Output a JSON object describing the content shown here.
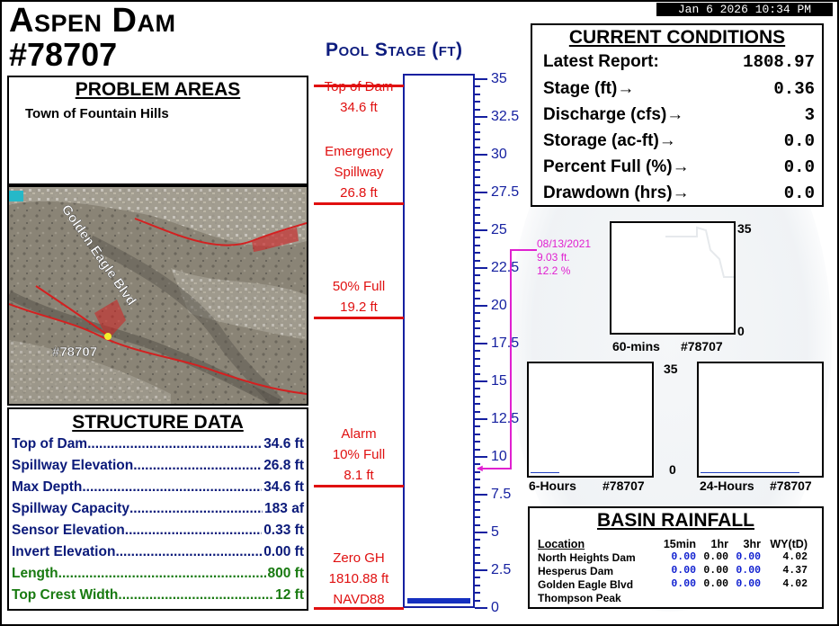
{
  "datetime": "Jan  6 2026 10:34 PM",
  "dam": {
    "name": "Aspen Dam",
    "id": "#78707"
  },
  "problem_areas": {
    "header": "PROBLEM AREAS",
    "text": "Town of Fountain Hills"
  },
  "map": {
    "road_label": "Golden Eagle Blvd",
    "marker_label": "#78707"
  },
  "structure": {
    "header": "STRUCTURE DATA",
    "rows": [
      {
        "label": "Top of Dam",
        "value": "34.6 ft",
        "color": "#0b1a7a"
      },
      {
        "label": "Spillway Elevation",
        "value": "26.8 ft",
        "color": "#0b1a7a"
      },
      {
        "label": "Max Depth",
        "value": "34.6 ft",
        "color": "#0b1a7a"
      },
      {
        "label": "Spillway Capacity",
        "value": "183 af",
        "color": "#0b1a7a"
      },
      {
        "label": "Sensor Elevation",
        "value": "0.33 ft",
        "color": "#0b1a7a"
      },
      {
        "label": "Invert Elevation",
        "value": "0.00 ft",
        "color": "#0b1a7a"
      },
      {
        "label": "Length",
        "value": "800 ft",
        "color": "#187a10"
      },
      {
        "label": "Top Crest Width",
        "value": "12 ft",
        "color": "#187a10"
      }
    ]
  },
  "pool": {
    "title": "Pool Stage (ft)",
    "ticks": [
      "35",
      "32.5",
      "30",
      "27.5",
      "25",
      "22.5",
      "20",
      "17.5",
      "15",
      "12.5",
      "10",
      "7.5",
      "5",
      "2.5",
      "0"
    ],
    "current_stage_ft": 0.36,
    "levels": [
      {
        "line1": "Top of Dam",
        "line2": "34.6 ft"
      },
      {
        "line1": "Emergency",
        "line2": "Spillway",
        "line3": "26.8 ft"
      },
      {
        "line1": "50% Full",
        "line2": "19.2 ft"
      },
      {
        "line1": "Alarm",
        "line2": "10% Full",
        "line3": "8.1 ft"
      },
      {
        "line1": "Zero GH",
        "line2": "1810.88 ft",
        "line3": "NAVD88"
      }
    ],
    "peak": {
      "date": "08/13/2021",
      "stage": "9.03 ft.",
      "percent": "12.2 %"
    }
  },
  "conditions": {
    "header": "CURRENT CONDITIONS",
    "latest_label": "Latest Report:",
    "latest_value": "1808.97",
    "rows": [
      {
        "label": "Stage (ft)",
        "value": "0.36"
      },
      {
        "label": "Discharge (cfs)",
        "value": "3"
      },
      {
        "label": "Storage (ac-ft)",
        "value": "0.0"
      },
      {
        "label": "Percent Full (%)",
        "value": "0.0"
      },
      {
        "label": "Drawdown (hrs)",
        "value": "0.0"
      }
    ]
  },
  "mini_charts": {
    "max": "35",
    "min": "0",
    "c60": {
      "label": "60-mins",
      "id": "#78707"
    },
    "c6h": {
      "label": "6-Hours",
      "id": "#78707"
    },
    "c24h": {
      "label": "24-Hours",
      "id": "#78707"
    }
  },
  "rainfall": {
    "header": "BASIN RAINFALL",
    "columns": [
      "Location",
      "15min",
      "1hr",
      "3hr",
      "WY(tD)"
    ],
    "rows": [
      {
        "location": "North Heights Dam",
        "m15": "0.00",
        "h1": "0.00",
        "h3": "0.00",
        "wy": "4.02"
      },
      {
        "location": "Hesperus Dam",
        "m15": "0.00",
        "h1": "0.00",
        "h3": "0.00",
        "wy": "4.37"
      },
      {
        "location": "Golden Eagle Blvd",
        "m15": "0.00",
        "h1": "0.00",
        "h3": "0.00",
        "wy": "4.02"
      },
      {
        "location": "Thompson Peak",
        "m15": "",
        "h1": "",
        "h3": "",
        "wy": ""
      }
    ]
  }
}
